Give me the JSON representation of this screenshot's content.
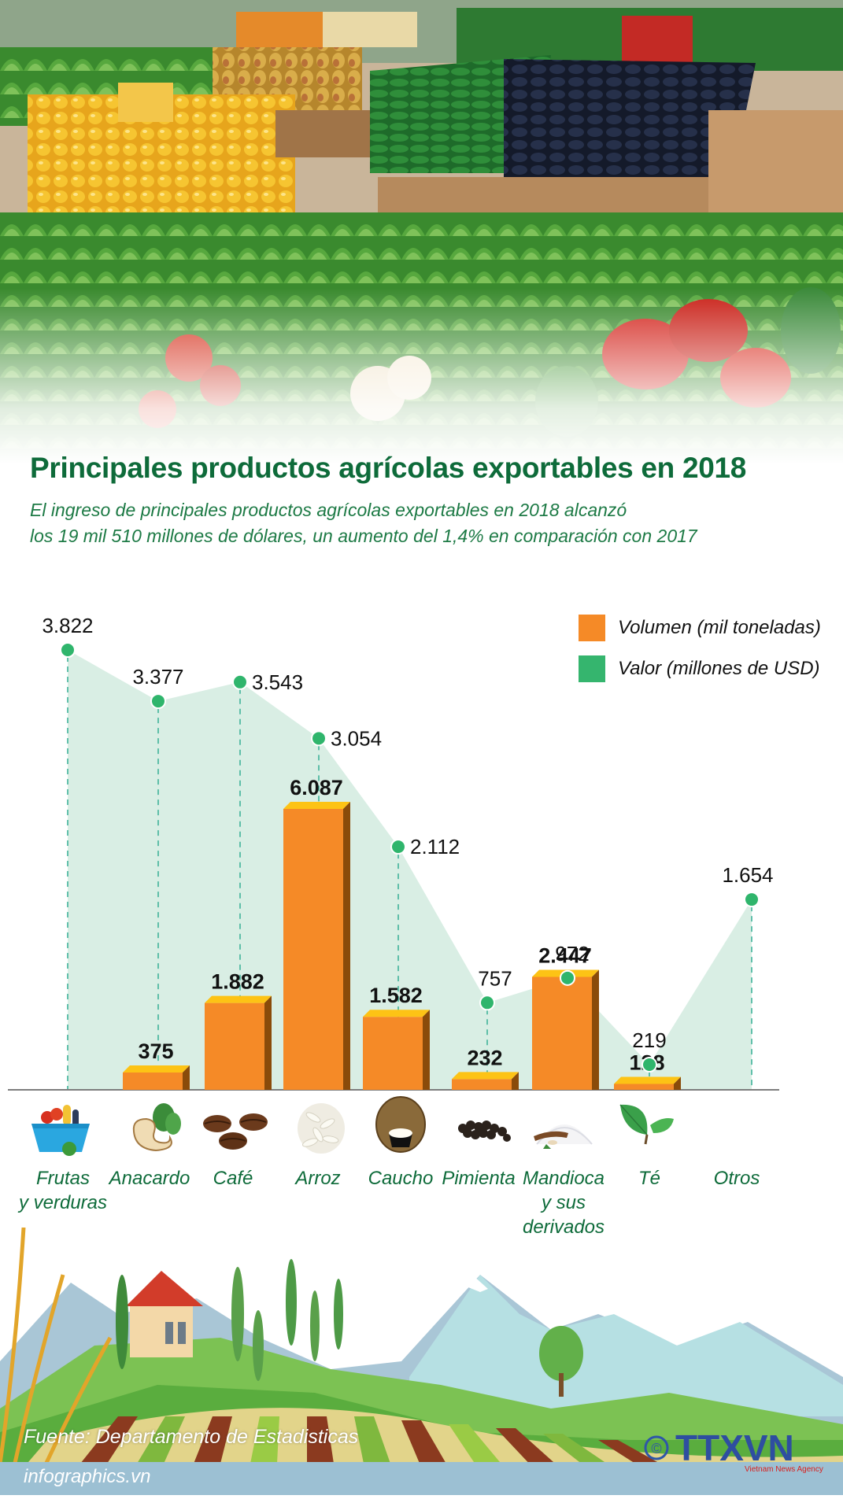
{
  "header": {
    "title": "Principales productos agrícolas exportables en 2018",
    "subtitle_line1": "El ingreso de principales productos agrícolas exportables en 2018 alcanzó",
    "subtitle_line2": "los 19 mil 510 millones de dólares, un aumento del 1,4% en comparación con 2017"
  },
  "legend": {
    "volume_label": "Volumen (mil toneladas)",
    "value_label": "Valor (millones de USD)"
  },
  "colors": {
    "bar_front": "#f58a27",
    "bar_top": "#fdc315",
    "bar_side": "#8a4b0a",
    "area_fill": "#d9eee4",
    "point": "#2fb56c",
    "dash": "#3fb39a",
    "title": "#0e6b3a",
    "legend_value": "#35b56e"
  },
  "categories": [
    {
      "label_lines": [
        "Frutas",
        "y verduras"
      ],
      "icon": "fruit-basket-icon"
    },
    {
      "label_lines": [
        "Anacardo"
      ],
      "icon": "cashew-icon"
    },
    {
      "label_lines": [
        "Café"
      ],
      "icon": "coffee-beans-icon"
    },
    {
      "label_lines": [
        "Arroz"
      ],
      "icon": "rice-icon"
    },
    {
      "label_lines": [
        "Caucho"
      ],
      "icon": "rubber-latex-icon"
    },
    {
      "label_lines": [
        "Pimienta"
      ],
      "icon": "pepper-icon"
    },
    {
      "label_lines": [
        "Mandioca",
        "y sus",
        "derivados"
      ],
      "icon": "cassava-icon"
    },
    {
      "label_lines": [
        "Té"
      ],
      "icon": "tea-leaf-icon"
    },
    {
      "label_lines": [
        "Otros"
      ],
      "icon": null
    }
  ],
  "chart_data": {
    "type": "bar",
    "title": "Principales productos agrícolas exportables en 2018",
    "categories": [
      "Frutas y verduras",
      "Anacardo",
      "Café",
      "Arroz",
      "Caucho",
      "Pimienta",
      "Mandioca y sus derivados",
      "Té",
      "Otros"
    ],
    "series": [
      {
        "name": "Volumen (mil toneladas)",
        "type": "bar",
        "values": [
          null,
          375,
          1882,
          6087,
          1582,
          232,
          2447,
          128,
          null
        ],
        "labels": [
          "",
          "375",
          "1.882",
          "6.087",
          "1.582",
          "232",
          "2.447",
          "128",
          ""
        ]
      },
      {
        "name": "Valor (millones de USD)",
        "type": "area",
        "values": [
          3822,
          3377,
          3543,
          3054,
          2112,
          757,
          972,
          219,
          1654
        ],
        "labels": [
          "3.822",
          "3.377",
          "3.543",
          "3.054",
          "2.112",
          "757",
          "972",
          "219",
          "1.654"
        ]
      }
    ],
    "xlabel": "",
    "ylabel": "",
    "grid": false,
    "legend_position": "top-right"
  },
  "footer": {
    "source": "Fuente: Departamento de Estadisticas",
    "site": "infographics.vn",
    "logo_text": "TTXVN",
    "logo_subtext": "Vietnam News Agency",
    "copyright_symbol": "©"
  }
}
